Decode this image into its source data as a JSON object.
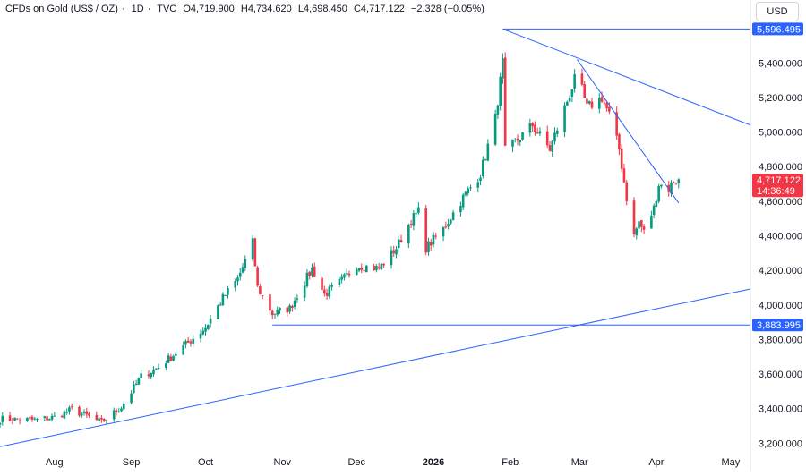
{
  "header": {
    "instrument": "CFDs on Gold (US$ / OZ)",
    "interval": "1D",
    "source": "TVC",
    "open": "O4,719.900",
    "high": "H4,734.620",
    "low": "L4,698.450",
    "close": "C4,717.122",
    "change": "−2.328 (−0.05%)"
  },
  "currency_button": "USD",
  "chart_data": {
    "type": "candlestick",
    "title": "CFDs on Gold (US$ / OZ)",
    "y_ticks": [
      "5,400.000",
      "5,200.000",
      "5,000.000",
      "4,800.000",
      "4,600.000",
      "4,400.000",
      "4,200.000",
      "4,000.000",
      "3,800.000",
      "3,600.000",
      "3,400.000",
      "3,200.000"
    ],
    "y_tick_values": [
      5400,
      5200,
      5000,
      4800,
      4600,
      4400,
      4200,
      4000,
      3800,
      3600,
      3400,
      3200
    ],
    "ylim": [
      3150,
      5650
    ],
    "x_ticks": [
      "Aug",
      "Sep",
      "Oct",
      "Nov",
      "Dec",
      "2026",
      "Feb",
      "Mar",
      "Apr",
      "May"
    ],
    "x_tick_dates": [
      "2025-08-01",
      "2025-09-01",
      "2025-10-01",
      "2025-11-01",
      "2025-12-01",
      "2026-01-01",
      "2026-02-01",
      "2026-03-01",
      "2026-04-01",
      "2026-05-01"
    ],
    "xlim": [
      "2025-07-10",
      "2026-05-09"
    ],
    "colors": {
      "up": "#089981",
      "down": "#f23645",
      "line": "#2962ff",
      "level_label": "#2962ff",
      "price_label": "#f23645"
    },
    "price_labels": [
      {
        "text": "5,596.495",
        "value": 5596.495
      },
      {
        "text": "3,883.995",
        "value": 3883.995
      },
      {
        "text": "4,717.122",
        "value": 4717.122,
        "sub": "14:36:49"
      }
    ],
    "drawings": [
      {
        "kind": "horizontal",
        "from": "2026-01-29",
        "value": 5596.495
      },
      {
        "kind": "horizontal",
        "from": "2025-10-28",
        "value": 3883.995
      },
      {
        "kind": "trend",
        "from": [
          "2025-07-10",
          3180
        ],
        "to": [
          "2026-05-09",
          4092
        ]
      },
      {
        "kind": "trend",
        "from": [
          "2026-01-29",
          5596
        ],
        "to": [
          "2026-05-09",
          5040
        ]
      },
      {
        "kind": "trend",
        "from": [
          "2026-02-28",
          5420
        ],
        "to": [
          "2026-04-10",
          4590
        ]
      }
    ],
    "anchors": [
      [
        "2025-07-10",
        3340
      ],
      [
        "2025-07-25",
        3335
      ],
      [
        "2025-08-01",
        3350
      ],
      [
        "2025-08-08",
        3395
      ],
      [
        "2025-08-20",
        3320
      ],
      [
        "2025-08-28",
        3410
      ],
      [
        "2025-09-05",
        3585
      ],
      [
        "2025-09-12",
        3640
      ],
      [
        "2025-09-23",
        3770
      ],
      [
        "2025-10-01",
        3870
      ],
      [
        "2025-10-08",
        4040
      ],
      [
        "2025-10-14",
        4150
      ],
      [
        "2025-10-20",
        4360
      ],
      [
        "2025-10-22",
        4100
      ],
      [
        "2025-10-28",
        3950
      ],
      [
        "2025-11-04",
        3980
      ],
      [
        "2025-11-13",
        4210
      ],
      [
        "2025-11-18",
        4060
      ],
      [
        "2025-11-25",
        4140
      ],
      [
        "2025-12-01",
        4230
      ],
      [
        "2025-12-10",
        4210
      ],
      [
        "2025-12-17",
        4330
      ],
      [
        "2025-12-23",
        4490
      ],
      [
        "2025-12-26",
        4540
      ],
      [
        "2025-12-29",
        4330
      ],
      [
        "2026-01-05",
        4440
      ],
      [
        "2026-01-12",
        4600
      ],
      [
        "2026-01-20",
        4760
      ],
      [
        "2026-01-26",
        5080
      ],
      [
        "2026-01-29",
        5400
      ],
      [
        "2026-01-30",
        4890
      ],
      [
        "2026-02-03",
        4940
      ],
      [
        "2026-02-10",
        5040
      ],
      [
        "2026-02-17",
        4900
      ],
      [
        "2026-02-24",
        5180
      ],
      [
        "2026-02-28",
        5340
      ],
      [
        "2026-03-04",
        5140
      ],
      [
        "2026-03-10",
        5200
      ],
      [
        "2026-03-13",
        5100
      ],
      [
        "2026-03-17",
        4900
      ],
      [
        "2026-03-20",
        4620
      ],
      [
        "2026-03-23",
        4400
      ],
      [
        "2026-03-25",
        4480
      ],
      [
        "2026-03-27",
        4420
      ],
      [
        "2026-03-31",
        4560
      ],
      [
        "2026-04-02",
        4700
      ],
      [
        "2026-04-06",
        4670
      ],
      [
        "2026-04-08",
        4720
      ],
      [
        "2026-04-10",
        4717
      ]
    ]
  }
}
